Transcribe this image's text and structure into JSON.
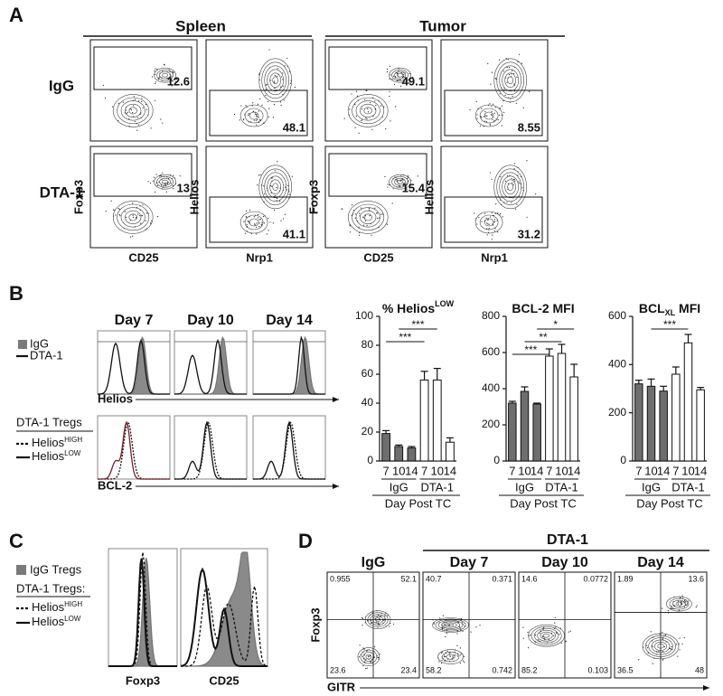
{
  "panel_a": {
    "label": "A",
    "headers": [
      "Spleen",
      "Tumor"
    ],
    "rows": [
      "IgG",
      "DTA-1"
    ],
    "plots": [
      {
        "y_label": "Foxp3",
        "x_label": "CD25",
        "values": [
          12.6,
          13
        ]
      },
      {
        "y_label": "Helios",
        "x_label": "Nrp1",
        "values": [
          48.1,
          41.1
        ]
      },
      {
        "y_label": "Foxp3",
        "x_label": "CD25",
        "values": [
          49.1,
          15.4
        ]
      },
      {
        "y_label": "Helios",
        "x_label": "Nrp1",
        "values": [
          8.55,
          31.2
        ]
      }
    ]
  },
  "panel_b": {
    "label": "B",
    "days": [
      "Day 7",
      "Day 10",
      "Day 14"
    ],
    "legend_top": [
      "IgG",
      "DTA-1"
    ],
    "top_axis": "Helios",
    "legend_bottom_title": "DTA-1 Tregs",
    "legend_bottom": [
      [
        "Helios",
        "HIGH"
      ],
      [
        "Helios",
        "LOW"
      ]
    ],
    "bottom_axis": "BCL-2"
  },
  "chart_data": [
    {
      "type": "bar",
      "title_parts": [
        {
          "text": "% Helios"
        },
        {
          "text": "LOW",
          "sup": true
        }
      ],
      "categories": [
        "7",
        "10",
        "14",
        "7",
        "10",
        "14"
      ],
      "groups": [
        "IgG",
        "DTA-1"
      ],
      "x_label": "Day Post TC",
      "values": [
        19,
        10,
        9,
        56,
        56,
        13
      ],
      "errors": [
        2,
        1,
        1,
        6,
        8,
        3
      ],
      "colors": [
        "#6e6e6e",
        "#6e6e6e",
        "#6e6e6e",
        "#ffffff",
        "#ffffff",
        "#ffffff"
      ],
      "ylim": [
        0,
        100
      ],
      "yticks": [
        0,
        20,
        40,
        60,
        80,
        100
      ],
      "annotations": [
        {
          "label": "***",
          "from": 0,
          "to": 3
        },
        {
          "label": "***",
          "from": 1,
          "to": 4
        }
      ]
    },
    {
      "type": "bar",
      "title_parts": [
        {
          "text": "BCL-2 MFI"
        }
      ],
      "categories": [
        "7",
        "10",
        "14",
        "7",
        "10",
        "14"
      ],
      "groups": [
        "IgG",
        "DTA-1"
      ],
      "x_label": "Day Post TC",
      "values": [
        320,
        385,
        315,
        580,
        595,
        465
      ],
      "errors": [
        10,
        25,
        5,
        40,
        50,
        70
      ],
      "colors": [
        "#6e6e6e",
        "#6e6e6e",
        "#6e6e6e",
        "#ffffff",
        "#ffffff",
        "#ffffff"
      ],
      "ylim": [
        0,
        800
      ],
      "yticks": [
        0,
        200,
        400,
        600,
        800
      ],
      "annotations": [
        {
          "label": "***",
          "from": 0,
          "to": 3
        },
        {
          "label": "**",
          "from": 1,
          "to": 4
        },
        {
          "label": "*",
          "from": 2,
          "to": 5
        }
      ]
    },
    {
      "type": "bar",
      "title_parts": [
        {
          "text": "BCL"
        },
        {
          "text": "XL",
          "sub": true
        },
        {
          "text": " MFI"
        }
      ],
      "categories": [
        "7",
        "10",
        "14",
        "7",
        "10",
        "14"
      ],
      "groups": [
        "IgG",
        "DTA-1"
      ],
      "x_label": "Day Post TC",
      "values": [
        320,
        310,
        290,
        360,
        490,
        295
      ],
      "errors": [
        15,
        30,
        20,
        30,
        35,
        10
      ],
      "colors": [
        "#6e6e6e",
        "#6e6e6e",
        "#6e6e6e",
        "#ffffff",
        "#ffffff",
        "#ffffff"
      ],
      "ylim": [
        0,
        600
      ],
      "yticks": [
        0,
        200,
        400,
        600
      ],
      "annotations": [
        {
          "label": "***",
          "from": 1,
          "to": 4
        }
      ]
    }
  ],
  "panel_c": {
    "label": "C",
    "legend": "IgG Tregs",
    "legend_title": "DTA-1 Tregs:",
    "legend_lines": [
      [
        "Helios",
        "HIGH"
      ],
      [
        "Helios",
        "LOW"
      ]
    ],
    "x_labels": [
      "Foxp3",
      "CD25"
    ]
  },
  "panel_d": {
    "label": "D",
    "header": "DTA-1",
    "titles": [
      "IgG",
      "Day 7",
      "Day 10",
      "Day 14"
    ],
    "y_label": "Foxp3",
    "x_label": "GITR",
    "quadrants": [
      [
        0.955,
        52.1,
        23.6,
        23.4
      ],
      [
        40.7,
        0.371,
        58.2,
        0.742
      ],
      [
        14.6,
        0.0772,
        85.2,
        0.103
      ],
      [
        1.89,
        13.6,
        36.5,
        48
      ]
    ]
  }
}
